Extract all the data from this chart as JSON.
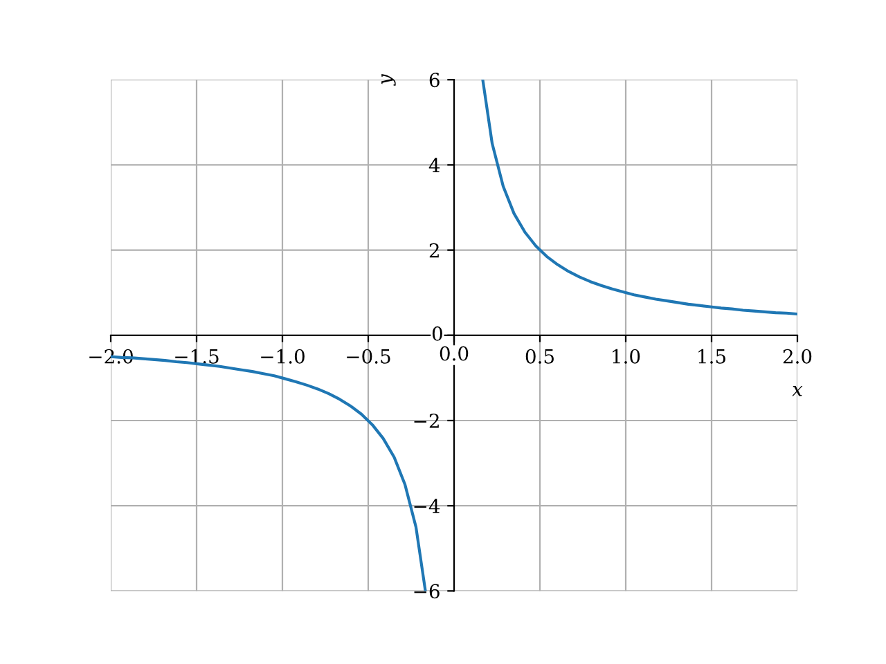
{
  "chart_data": {
    "type": "line",
    "xlabel": "x",
    "ylabel": "y",
    "series": [
      {
        "color": "#1f77b4",
        "x": [
          -2,
          -1.937,
          -1.873,
          -1.81,
          -1.746,
          -1.683,
          -1.619,
          -1.556,
          -1.492,
          -1.429,
          -1.365,
          -1.302,
          -1.238,
          -1.175,
          -1.111,
          -1.048,
          -0.984,
          -0.921,
          -0.857,
          -0.794,
          -0.73,
          -0.667,
          -0.603,
          -0.54,
          -0.476,
          -0.413,
          -0.349,
          -0.286,
          -0.222,
          -0.167
        ],
        "values": [
          -0.5,
          -0.52,
          -0.53,
          -0.55,
          -0.57,
          -0.59,
          -0.62,
          -0.64,
          -0.67,
          -0.7,
          -0.73,
          -0.77,
          -0.81,
          -0.85,
          -0.9,
          -0.95,
          -1.02,
          -1.09,
          -1.17,
          -1.26,
          -1.37,
          -1.5,
          -1.66,
          -1.85,
          -2.1,
          -2.42,
          -2.86,
          -3.5,
          -4.5,
          -6
        ]
      },
      {
        "color": "#1f77b4",
        "x": [
          0.167,
          0.222,
          0.286,
          0.349,
          0.413,
          0.476,
          0.54,
          0.603,
          0.667,
          0.73,
          0.794,
          0.857,
          0.921,
          0.984,
          1.048,
          1.111,
          1.175,
          1.238,
          1.302,
          1.365,
          1.429,
          1.492,
          1.556,
          1.619,
          1.683,
          1.746,
          1.81,
          1.873,
          1.937,
          2
        ],
        "values": [
          6,
          4.5,
          3.5,
          2.86,
          2.42,
          2.1,
          1.85,
          1.66,
          1.5,
          1.37,
          1.26,
          1.17,
          1.09,
          1.02,
          0.95,
          0.9,
          0.85,
          0.81,
          0.77,
          0.73,
          0.7,
          0.67,
          0.64,
          0.62,
          0.59,
          0.57,
          0.55,
          0.53,
          0.52,
          0.5
        ]
      }
    ],
    "xlim": [
      -2,
      2
    ],
    "ylim": [
      -6,
      6
    ],
    "xticks": [
      {
        "value": -2,
        "label": "−2.0"
      },
      {
        "value": -1.5,
        "label": "−1.5"
      },
      {
        "value": -1,
        "label": "−1.0"
      },
      {
        "value": -0.5,
        "label": "−0.5"
      },
      {
        "value": 0,
        "label": "0.0"
      },
      {
        "value": 0.5,
        "label": "0.5"
      },
      {
        "value": 1,
        "label": "1.0"
      },
      {
        "value": 1.5,
        "label": "1.5"
      },
      {
        "value": 2,
        "label": "2.0"
      }
    ],
    "yticks": [
      {
        "value": -6,
        "label": "−6"
      },
      {
        "value": -4,
        "label": "−4"
      },
      {
        "value": -2,
        "label": "−2"
      },
      0,
      2,
      4,
      6
    ],
    "grid": true
  }
}
